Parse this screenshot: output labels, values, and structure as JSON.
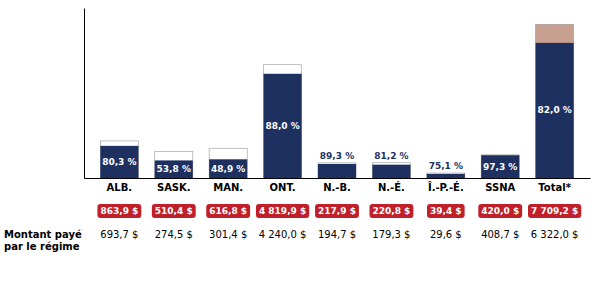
{
  "chart_data": {
    "type": "bar",
    "categories": [
      "ALB.",
      "SASK.",
      "MAN.",
      "ONT.",
      "N.-B.",
      "N.-É.",
      "Î.-P.-É.",
      "SSNA",
      "Total*"
    ],
    "series": [
      {
        "values": [
          863.9,
          510.4,
          616.8,
          4819.9,
          217.9,
          220.8,
          39.4,
          420.0,
          7709.2
        ],
        "value_labels": [
          "863,9 $",
          "510,4 $",
          "616,8 $",
          "4 819,9 $",
          "217,9 $",
          "220,8 $",
          "39,4 $",
          "420,0 $",
          "7 709,2 $"
        ],
        "colors": [
          "#ffffff",
          "#ffffff",
          "#ffffff",
          "#ffffff",
          "#ffffff",
          "#ffffff",
          "#ffffff",
          "#ffffff",
          "#c8a090"
        ]
      },
      {
        "values": [
          693.7,
          274.5,
          301.4,
          4240.0,
          194.7,
          179.3,
          29.6,
          408.7,
          6322.0
        ],
        "value_labels": [
          "693,7 $",
          "274,5 $",
          "301,4 $",
          "4 240,0 $",
          "194,7 $",
          "179,3 $",
          "29,6 $",
          "408,7 $",
          "6 322,0 $"
        ],
        "color": "#1e3060",
        "shares": [
          80.3,
          53.8,
          48.9,
          88.0,
          89.3,
          81.2,
          75.1,
          97.3,
          82.0
        ],
        "share_labels": [
          "80,3 %",
          "53,8 %",
          "48,9 %",
          "88,0 %",
          "89,3 %",
          "81,2 %",
          "75,1 %",
          "97,3 %",
          "82,0 %"
        ]
      }
    ],
    "ylabel": "Montant payé\npar le régime",
    "ylim": [
      0,
      9000
    ],
    "data_labels": true,
    "tick_labels": "x"
  }
}
